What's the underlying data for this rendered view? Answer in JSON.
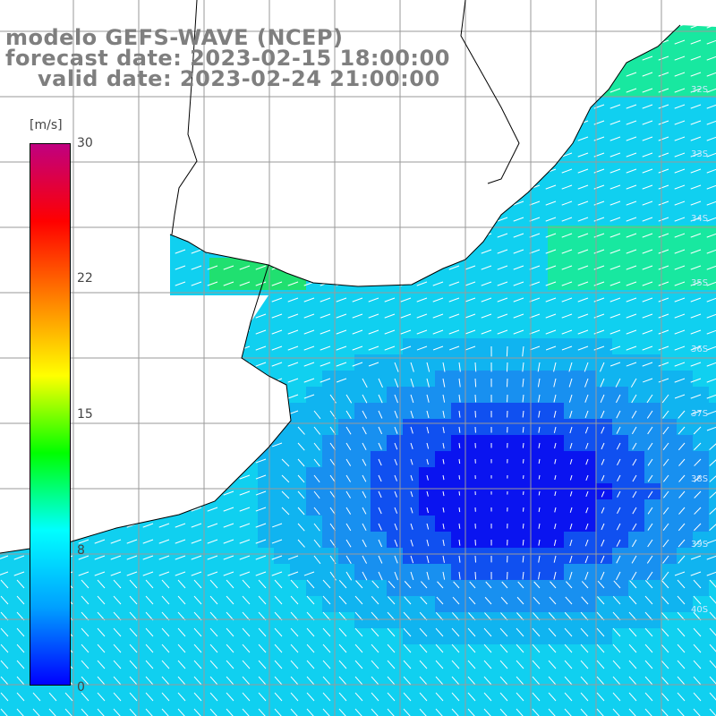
{
  "title": {
    "model": "modelo GEFS-WAVE (NCEP)",
    "forecast": "forecast date: 2023-02-15 18:00:00",
    "valid": "valid date: 2023-02-24 21:00:00"
  },
  "colorbar": {
    "unit": "[m/s]",
    "ticks": [
      "30",
      "22",
      "15",
      "8",
      "0"
    ],
    "stops": [
      "#0000ff",
      "#00a0ff",
      "#00ffff",
      "#00ff00",
      "#ffff00",
      "#ff8000",
      "#ff0000",
      "#c00080"
    ]
  },
  "lat_labels": [
    "32S",
    "33S",
    "34S",
    "35S",
    "36S",
    "37S",
    "38S",
    "39S",
    "40S"
  ],
  "colors": {
    "land": "#ffffff",
    "coast": "#000000",
    "grid": "#9a9a9a",
    "arrow": "#ffffff",
    "title": "#7f7f7f"
  }
}
